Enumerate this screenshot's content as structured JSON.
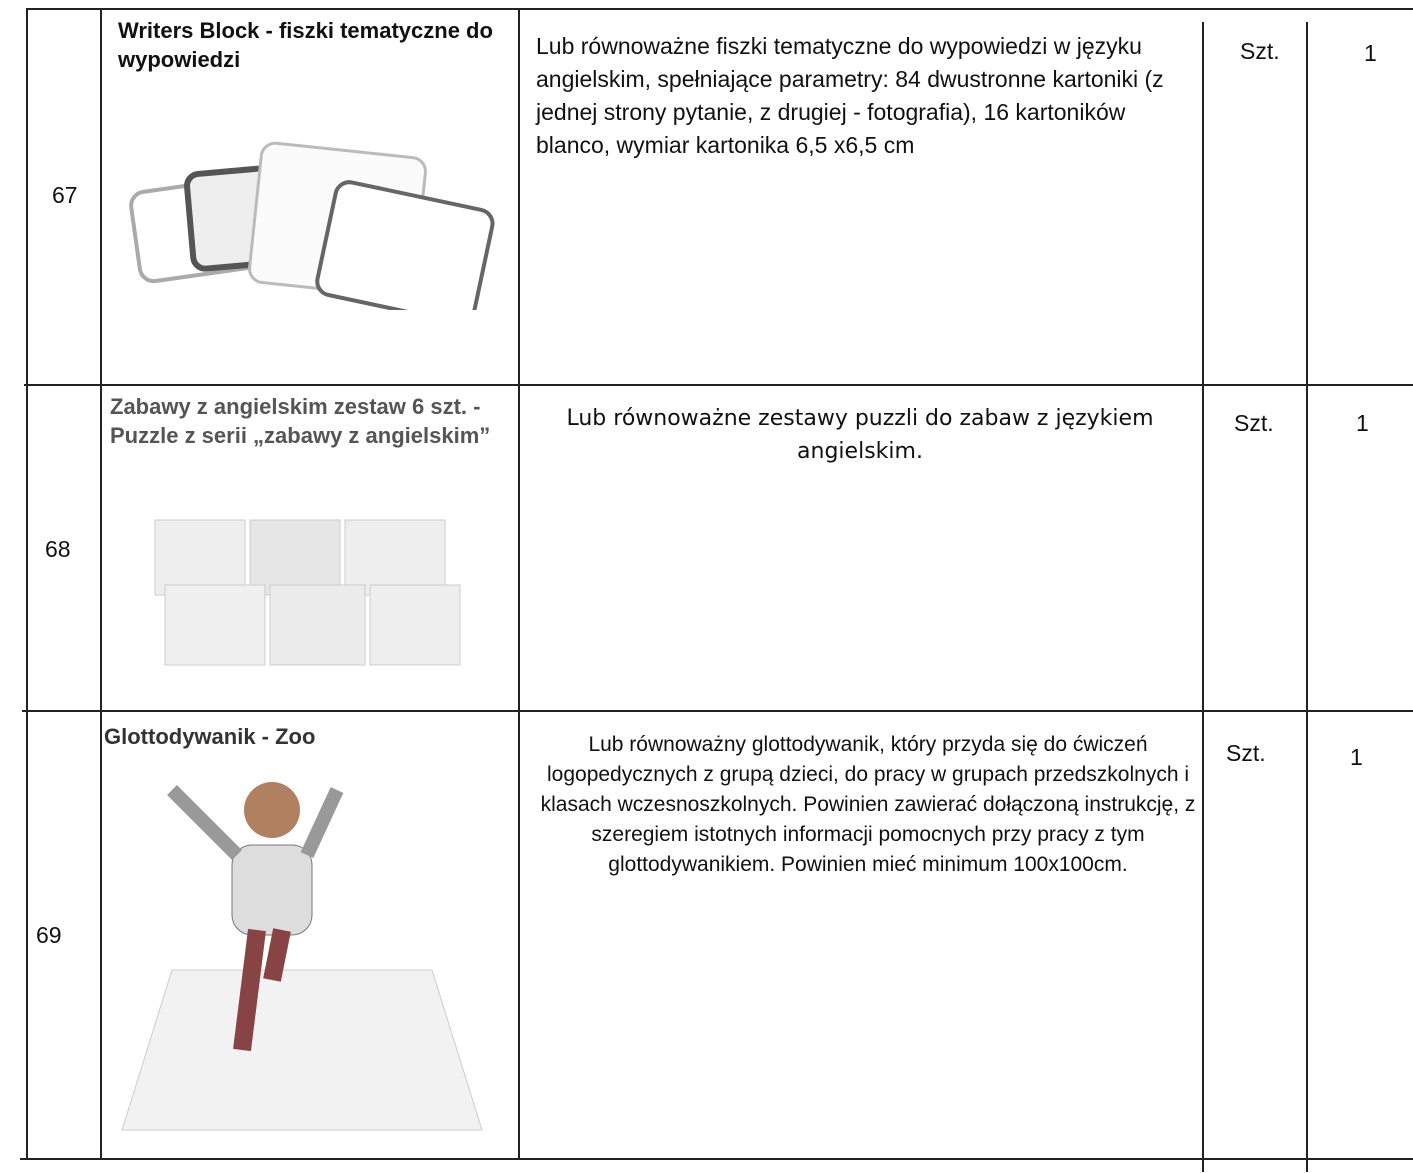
{
  "table": {
    "rows": [
      [
        "67",
        "Writers Block - fiszki tematyczne do wypowiedzi",
        "Lub równoważne fiszki tematyczne do wypowiedzi w języku angielskim, spełniające parametry: 84 dwustronne kartoniki (z jednej strony pytanie, z drugiej - fotografia), 16 kartoników blanco, wymiar kartonika 6,5 x6,5 cm",
        "Szt.",
        "1"
      ],
      [
        "68",
        "Zabawy z angielskim zestaw 6 szt. - Puzzle z serii „zabawy z angielskim”",
        "Lub równoważne zestawy puzzli do zabaw z językiem angielskim.",
        "Szt.",
        "1"
      ],
      [
        "69",
        "Glottodywanik - Zoo",
        "Lub równoważny glottodywanik, który przyda się do ćwiczeń logopedycznych z grupą dzieci, do pracy w grupach przedszkolnych i klasach wczesnoszkolnych. Powinien zawierać dołączoną instrukcję, z szeregiem istotnych informacji pomocnych przy pracy z tym glottodywanikiem. Powinien mieć minimum 100x100cm.",
        "Szt.",
        "1"
      ]
    ]
  }
}
